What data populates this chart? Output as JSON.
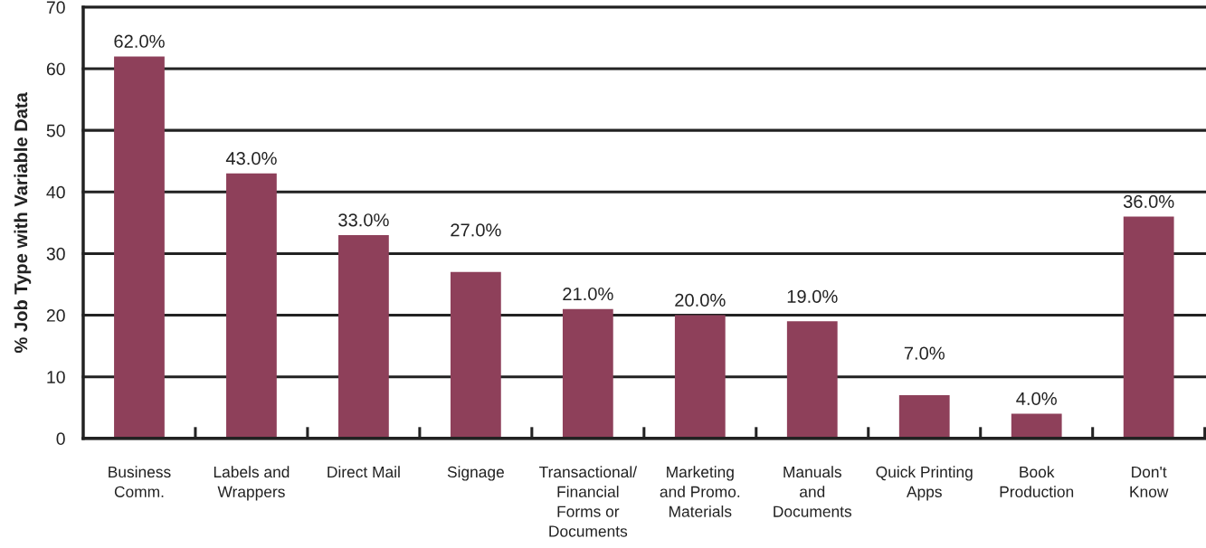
{
  "chart_data": {
    "type": "bar",
    "ylabel": "% Job Type with Variable Data",
    "categories": [
      "Business\nComm.",
      "Labels and\nWrappers",
      "Direct Mail",
      "Signage",
      "Transactional/\nFinancial\nForms or\nDocuments",
      "Marketing\nand Promo.\nMaterials",
      "Manuals\nand\nDocuments",
      "Quick Printing\nApps",
      "Book\nProduction",
      "Don't\nKnow"
    ],
    "values": [
      62,
      43,
      33,
      27,
      21,
      20,
      19,
      7,
      4,
      36
    ],
    "value_labels": [
      "62.0%",
      "43.0%",
      "33.0%",
      "27.0%",
      "21.0%",
      "20.0%",
      "19.0%",
      "7.0%",
      "4.0%",
      "36.0%"
    ],
    "color": "#8e405a",
    "ylim": [
      0,
      70
    ],
    "yticks": [
      0,
      10,
      20,
      30,
      40,
      50,
      60,
      70
    ],
    "grid": "y",
    "legend": false
  }
}
